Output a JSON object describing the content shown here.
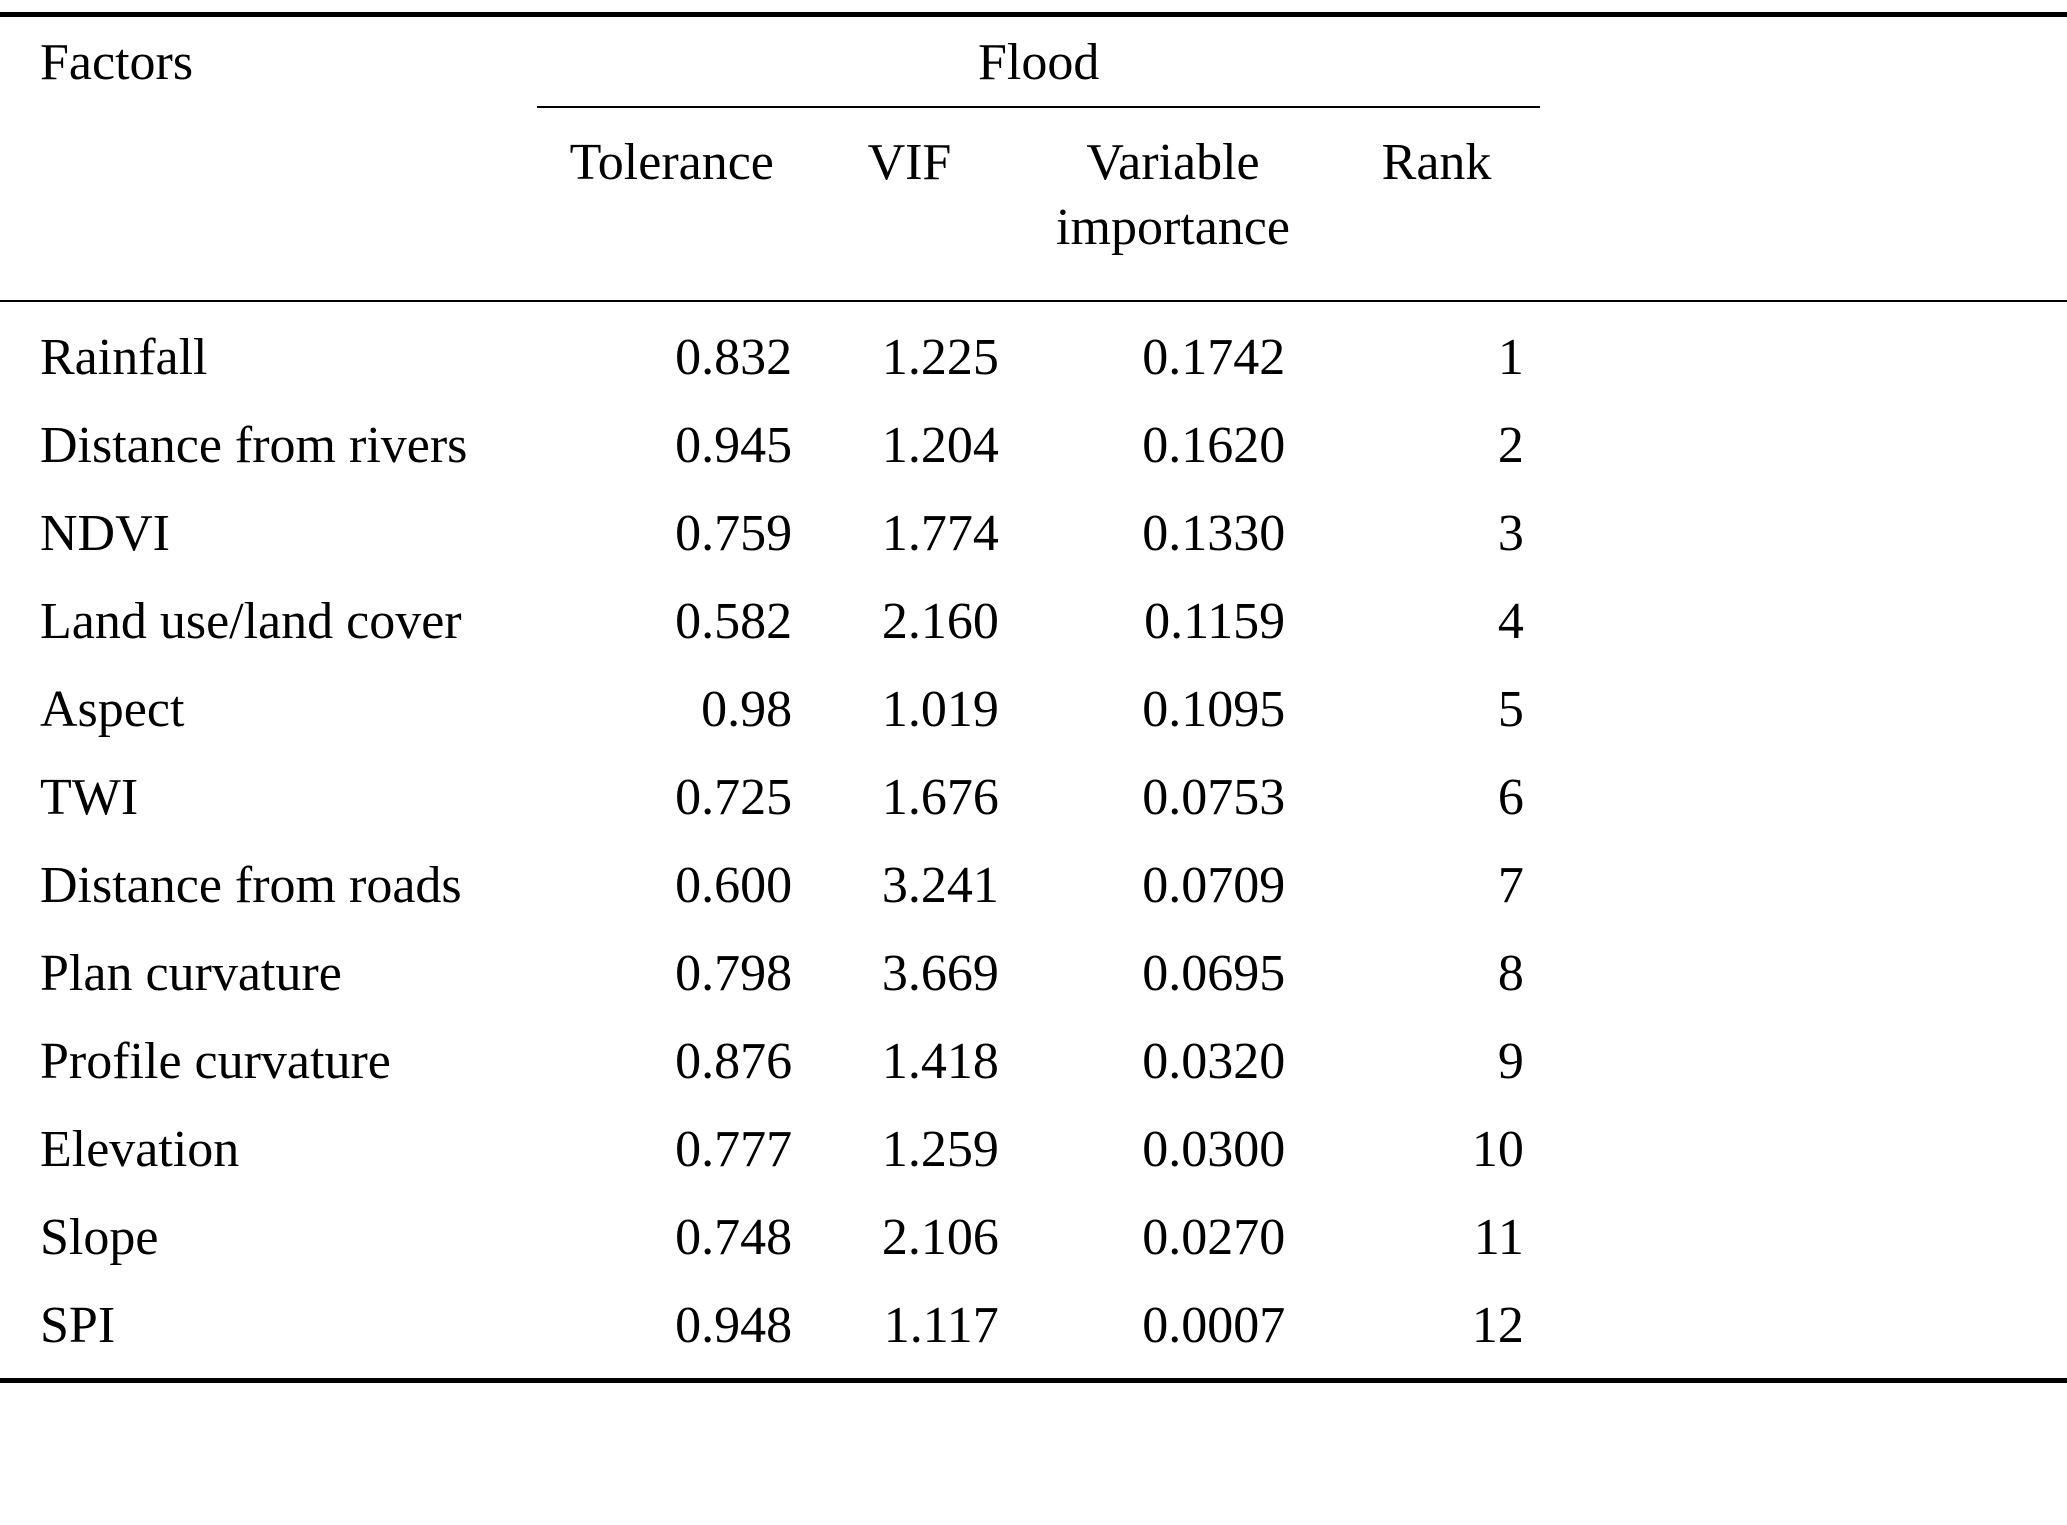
{
  "colors": {
    "background": "#ffffff",
    "text": "#000000",
    "rule": "#000000"
  },
  "table": {
    "factors_header": "Factors",
    "group_header": "Flood",
    "sub_headers": [
      "Tolerance",
      "VIF",
      "Variable importance",
      "Rank"
    ],
    "rows": [
      {
        "factor": "Rainfall",
        "tolerance": "0.832",
        "vif": "1.225",
        "importance": "0.1742",
        "rank": "1"
      },
      {
        "factor": "Distance from rivers",
        "tolerance": "0.945",
        "vif": "1.204",
        "importance": "0.1620",
        "rank": "2"
      },
      {
        "factor": "NDVI",
        "tolerance": "0.759",
        "vif": "1.774",
        "importance": "0.1330",
        "rank": "3"
      },
      {
        "factor": "Land use/land cover",
        "tolerance": "0.582",
        "vif": "2.160",
        "importance": "0.1159",
        "rank": "4"
      },
      {
        "factor": "Aspect",
        "tolerance": "0.98",
        "vif": "1.019",
        "importance": "0.1095",
        "rank": "5"
      },
      {
        "factor": "TWI",
        "tolerance": "0.725",
        "vif": "1.676",
        "importance": "0.0753",
        "rank": "6"
      },
      {
        "factor": "Distance from roads",
        "tolerance": "0.600",
        "vif": "3.241",
        "importance": "0.0709",
        "rank": "7"
      },
      {
        "factor": "Plan curvature",
        "tolerance": "0.798",
        "vif": "3.669",
        "importance": "0.0695",
        "rank": "8"
      },
      {
        "factor": "Profile curvature",
        "tolerance": "0.876",
        "vif": "1.418",
        "importance": "0.0320",
        "rank": "9"
      },
      {
        "factor": "Elevation",
        "tolerance": "0.777",
        "vif": "1.259",
        "importance": "0.0300",
        "rank": "10"
      },
      {
        "factor": "Slope",
        "tolerance": "0.748",
        "vif": "2.106",
        "importance": "0.0270",
        "rank": "11"
      },
      {
        "factor": "SPI",
        "tolerance": "0.948",
        "vif": "1.117",
        "importance": "0.0007",
        "rank": "12"
      }
    ]
  }
}
